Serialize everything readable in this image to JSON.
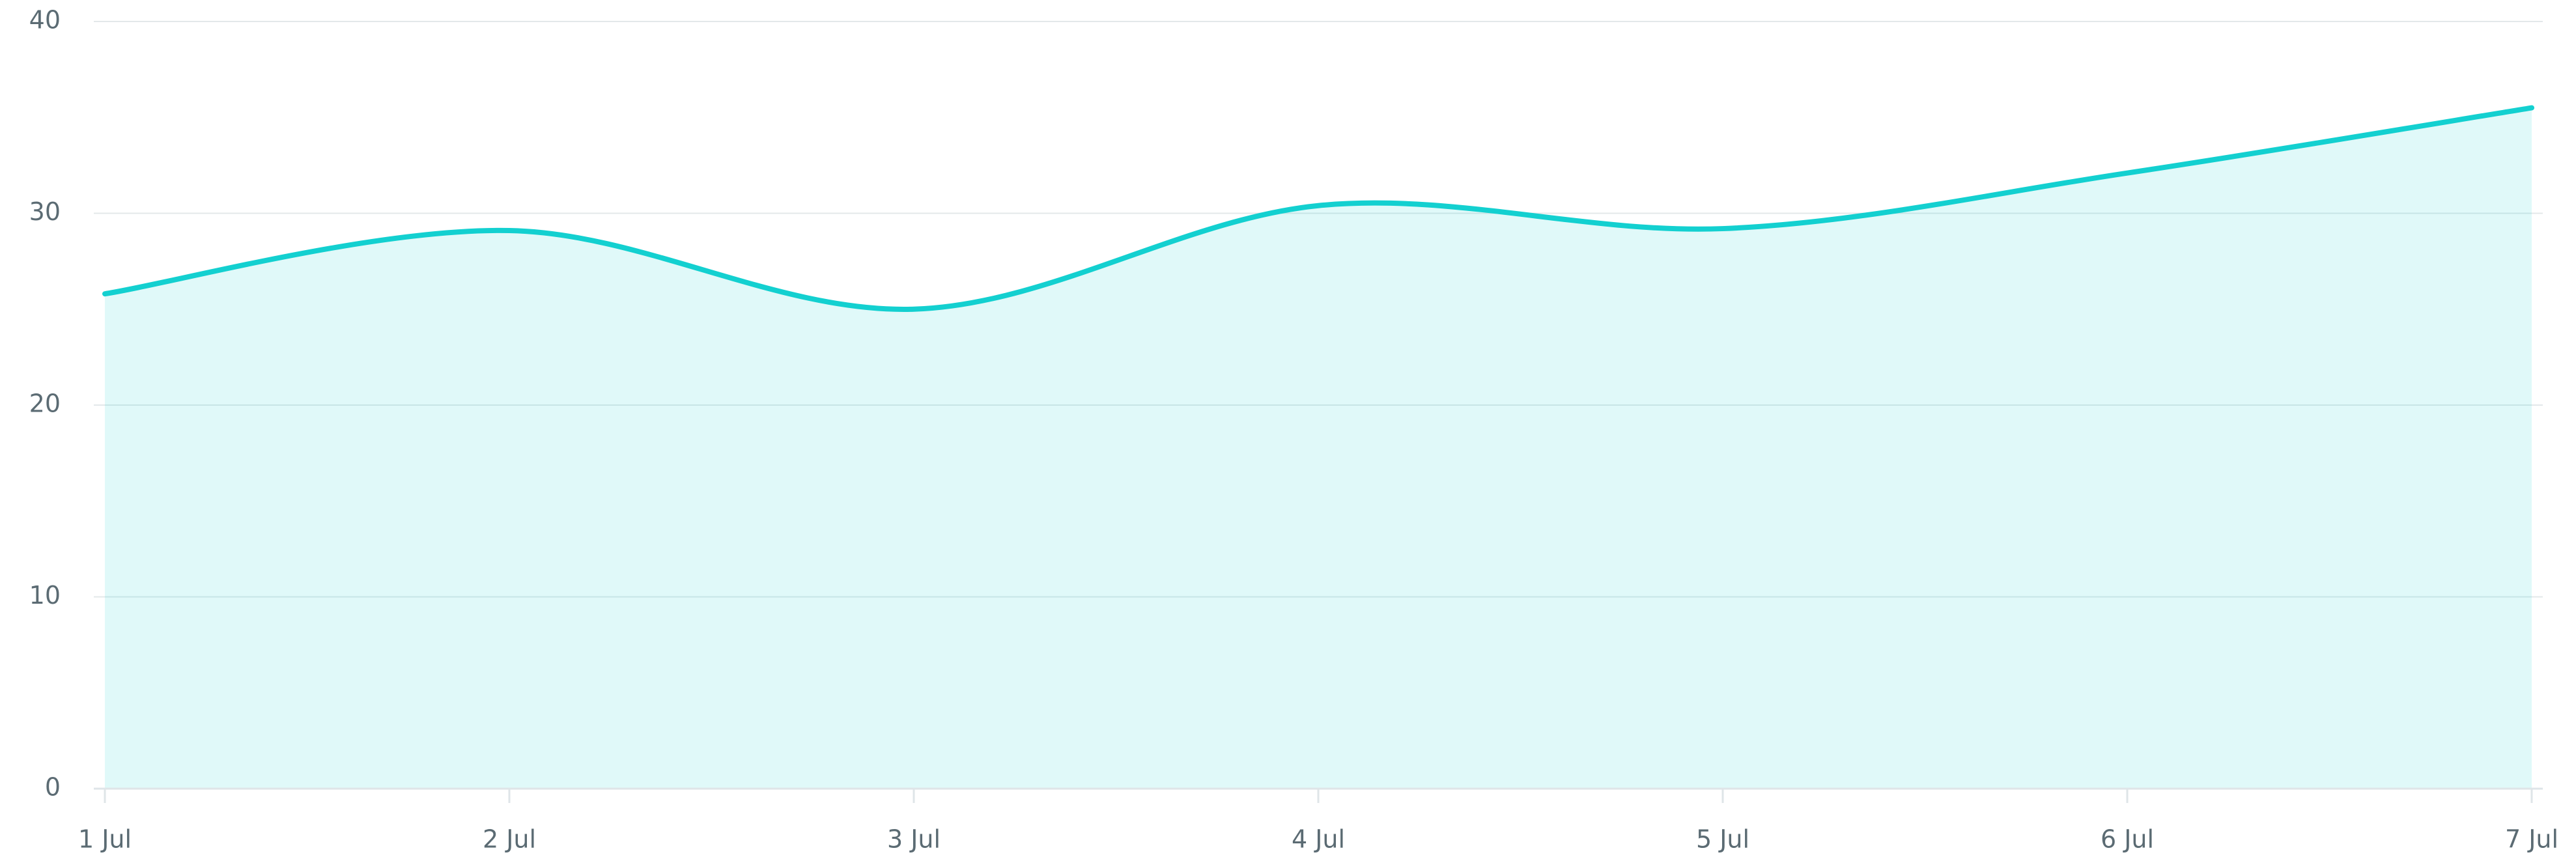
{
  "chart_data": {
    "type": "area",
    "categories": [
      "1 Jul",
      "2 Jul",
      "3 Jul",
      "4 Jul",
      "5 Jul",
      "6 Jul",
      "7 Jul"
    ],
    "series": [
      {
        "color": "#13d0d0",
        "values": [
          25.8,
          29.1,
          25.0,
          30.4,
          29.2,
          32.1,
          35.5
        ]
      }
    ],
    "ylim": [
      0,
      40
    ],
    "yticks": [
      0,
      10,
      20,
      30,
      40
    ],
    "grid": true
  }
}
